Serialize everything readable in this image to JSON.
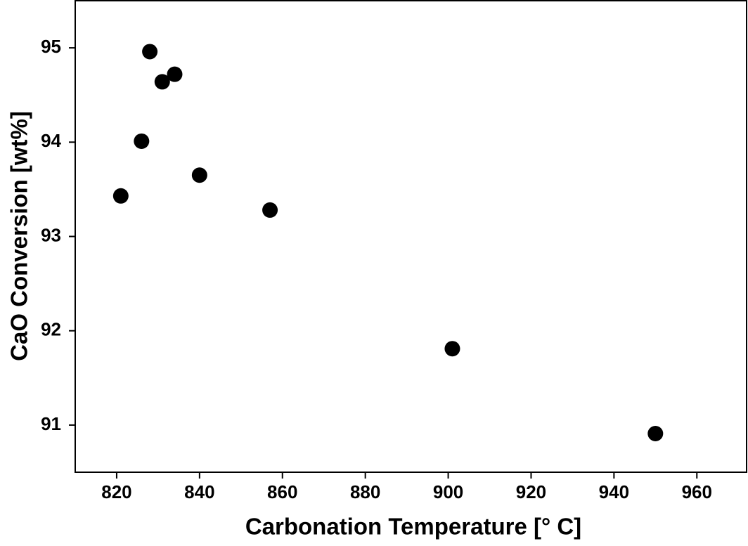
{
  "chart_data": {
    "type": "scatter",
    "x_label": "Carbonation Temperature [° C]",
    "y_label": "CaO Conversion [wt%]",
    "x": [
      821,
      826,
      828,
      831,
      834,
      840,
      857,
      901,
      950
    ],
    "series": [
      {
        "color": "#000000",
        "values": [
          93.43,
          94.01,
          94.96,
          94.64,
          94.72,
          93.65,
          93.28,
          91.81,
          90.91
        ]
      }
    ],
    "xlim": [
      810,
      972
    ],
    "xticks": [
      820,
      840,
      860,
      880,
      900,
      920,
      940,
      960
    ],
    "ylim": [
      90.5,
      95.5
    ],
    "yticks": [
      91,
      92,
      93,
      94,
      95
    ],
    "grid": false
  }
}
